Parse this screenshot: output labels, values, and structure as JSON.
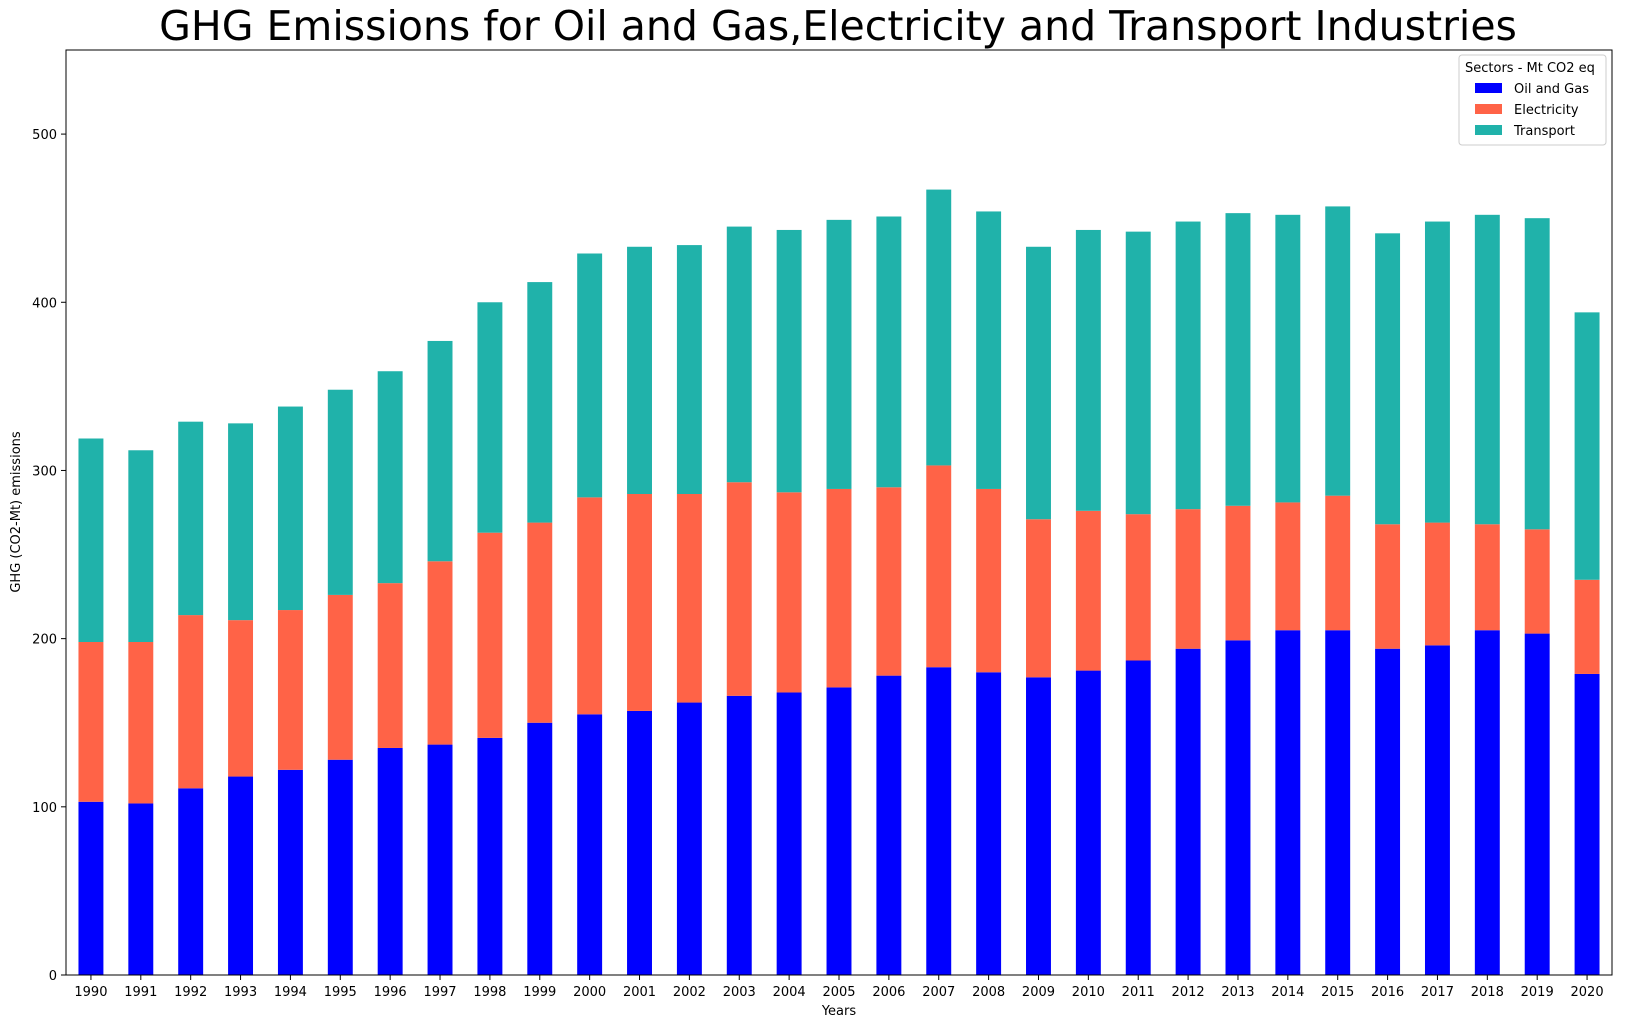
{
  "chart_data": {
    "type": "bar",
    "stacked": true,
    "title": "GHG Emissions for Oil and Gas,Electricity and Transport Industries",
    "xlabel": "Years",
    "ylabel": "GHG (CO2-Mt) emissions",
    "ylim": [
      0,
      550
    ],
    "yticks": [
      "0",
      "100",
      "200",
      "300",
      "400",
      "500"
    ],
    "grid": false,
    "legend": {
      "title": "Sectors - Mt CO2 eq",
      "position": "top-right"
    },
    "categories": [
      "1990",
      "1991",
      "1992",
      "1993",
      "1994",
      "1995",
      "1996",
      "1997",
      "1998",
      "1999",
      "2000",
      "2001",
      "2002",
      "2003",
      "2004",
      "2005",
      "2006",
      "2007",
      "2008",
      "2009",
      "2010",
      "2011",
      "2012",
      "2013",
      "2014",
      "2015",
      "2016",
      "2017",
      "2018",
      "2019",
      "2020"
    ],
    "series": [
      {
        "name": "Oil and Gas",
        "color": "#0000ff",
        "values": [
          103,
          102,
          111,
          118,
          122,
          128,
          135,
          137,
          141,
          150,
          155,
          157,
          162,
          166,
          168,
          171,
          178,
          183,
          180,
          177,
          181,
          187,
          194,
          199,
          205,
          205,
          194,
          196,
          205,
          203,
          179
        ]
      },
      {
        "name": "Electricity",
        "color": "#ff6347",
        "values": [
          95,
          96,
          103,
          93,
          95,
          98,
          98,
          109,
          122,
          119,
          129,
          129,
          124,
          127,
          119,
          118,
          112,
          120,
          109,
          94,
          95,
          87,
          83,
          80,
          76,
          80,
          74,
          73,
          63,
          62,
          56
        ]
      },
      {
        "name": "Transport",
        "color": "#20b2aa",
        "values": [
          121,
          114,
          115,
          117,
          121,
          122,
          126,
          131,
          137,
          143,
          145,
          147,
          148,
          152,
          156,
          160,
          161,
          164,
          165,
          162,
          167,
          168,
          171,
          174,
          171,
          172,
          173,
          179,
          184,
          185,
          159
        ]
      }
    ]
  }
}
